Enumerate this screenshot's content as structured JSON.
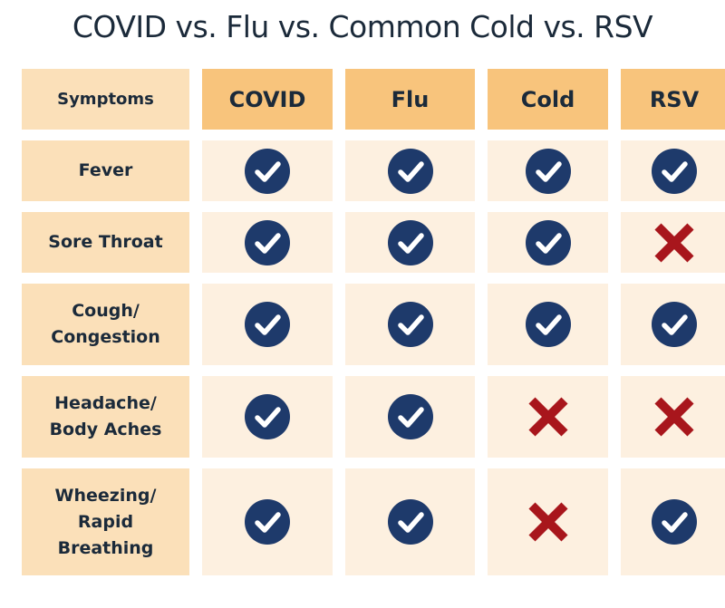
{
  "title": "COVID vs. Flu vs. Common Cold vs. RSV",
  "colors": {
    "header": "#f8c47c",
    "label": "#fbe0b9",
    "cell": "#fdf0e0",
    "check": "#1e3a6b",
    "cross": "#a8161c"
  },
  "table": {
    "corner_label": "Symptoms",
    "columns": [
      "COVID",
      "Flu",
      "Cold",
      "RSV"
    ],
    "rows": [
      {
        "label": "Fever",
        "values": [
          "check",
          "check",
          "check",
          "check"
        ]
      },
      {
        "label": "Sore Throat",
        "values": [
          "check",
          "check",
          "check",
          "cross"
        ]
      },
      {
        "label": "Cough/\nCongestion",
        "values": [
          "check",
          "check",
          "check",
          "check"
        ]
      },
      {
        "label": "Headache/\nBody Aches",
        "values": [
          "check",
          "check",
          "cross",
          "cross"
        ]
      },
      {
        "label": "Wheezing/\nRapid\nBreathing",
        "values": [
          "check",
          "check",
          "cross",
          "check"
        ]
      }
    ]
  }
}
